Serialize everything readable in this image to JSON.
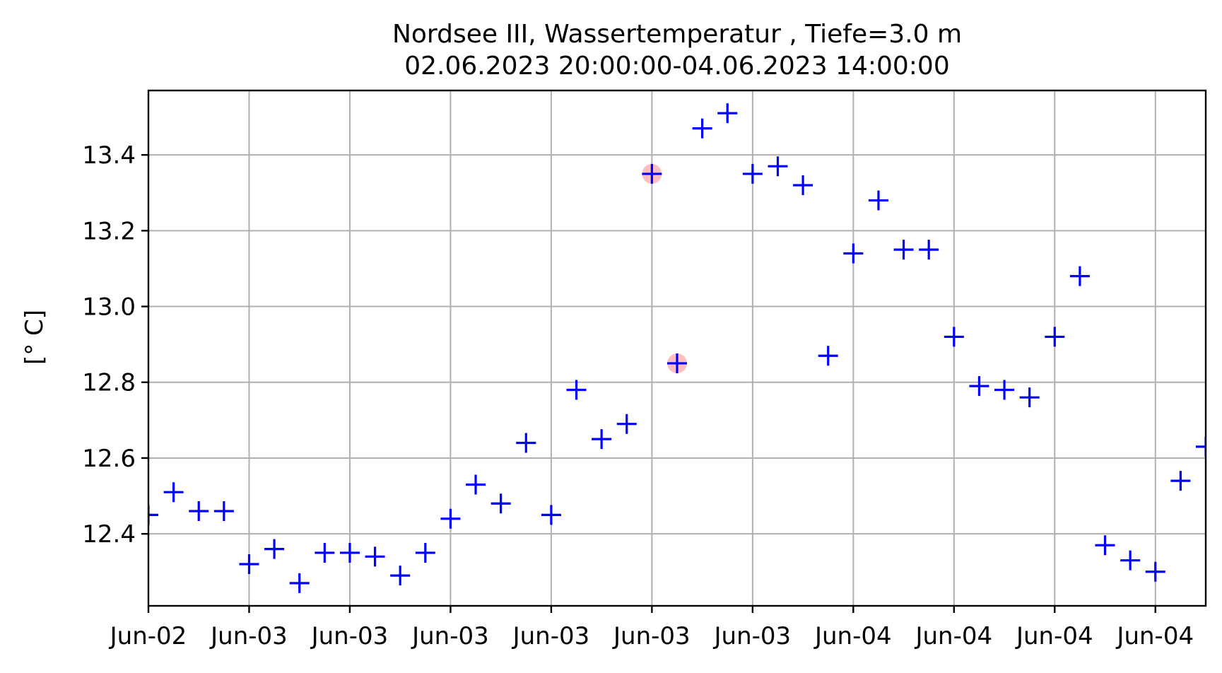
{
  "chart_data": {
    "type": "scatter",
    "title": "Nordsee III, Wassertemperatur , Tiefe=3.0 m",
    "subtitle": "02.06.2023 20:00:00-04.06.2023 14:00:00",
    "xlabel": "",
    "ylabel": "[° C]",
    "xlim": [
      "2023-06-02T20:00:00",
      "2023-06-04T14:00:00"
    ],
    "ylim": [
      12.21,
      13.57
    ],
    "grid": true,
    "x_tick_labels": [
      "Jun-02",
      "Jun-03",
      "Jun-03",
      "Jun-03",
      "Jun-03",
      "Jun-03",
      "Jun-03",
      "Jun-04",
      "Jun-04",
      "Jun-04",
      "Jun-04"
    ],
    "x_tick_values": [
      "2023-06-02T20:00:00",
      "2023-06-03T00:00:00",
      "2023-06-03T04:00:00",
      "2023-06-03T08:00:00",
      "2023-06-03T12:00:00",
      "2023-06-03T16:00:00",
      "2023-06-03T20:00:00",
      "2023-06-04T00:00:00",
      "2023-06-04T04:00:00",
      "2023-06-04T08:00:00",
      "2023-06-04T12:00:00"
    ],
    "y_ticks": [
      12.4,
      12.6,
      12.8,
      13.0,
      13.2,
      13.4
    ],
    "y_tick_labels": [
      "12.4",
      "12.6",
      "12.8",
      "13.0",
      "13.2",
      "13.4"
    ],
    "marker_color": "#0000ff",
    "highlight_color": "#ffaaaa",
    "series": [
      {
        "marker": "plus",
        "points": [
          {
            "x": "2023-06-02T20:00:00",
            "y": 12.45
          },
          {
            "x": "2023-06-02T21:00:00",
            "y": 12.51
          },
          {
            "x": "2023-06-02T22:00:00",
            "y": 12.46
          },
          {
            "x": "2023-06-02T23:00:00",
            "y": 12.46
          },
          {
            "x": "2023-06-03T00:00:00",
            "y": 12.32
          },
          {
            "x": "2023-06-03T01:00:00",
            "y": 12.36
          },
          {
            "x": "2023-06-03T02:00:00",
            "y": 12.27
          },
          {
            "x": "2023-06-03T03:00:00",
            "y": 12.35
          },
          {
            "x": "2023-06-03T04:00:00",
            "y": 12.35
          },
          {
            "x": "2023-06-03T05:00:00",
            "y": 12.34
          },
          {
            "x": "2023-06-03T06:00:00",
            "y": 12.29
          },
          {
            "x": "2023-06-03T07:00:00",
            "y": 12.35
          },
          {
            "x": "2023-06-03T08:00:00",
            "y": 12.44
          },
          {
            "x": "2023-06-03T09:00:00",
            "y": 12.53
          },
          {
            "x": "2023-06-03T10:00:00",
            "y": 12.48
          },
          {
            "x": "2023-06-03T11:00:00",
            "y": 12.64
          },
          {
            "x": "2023-06-03T12:00:00",
            "y": 12.45
          },
          {
            "x": "2023-06-03T13:00:00",
            "y": 12.78
          },
          {
            "x": "2023-06-03T14:00:00",
            "y": 12.65
          },
          {
            "x": "2023-06-03T15:00:00",
            "y": 12.69
          },
          {
            "x": "2023-06-03T16:00:00",
            "y": 13.35,
            "highlight": true
          },
          {
            "x": "2023-06-03T17:00:00",
            "y": 12.85,
            "highlight": true
          },
          {
            "x": "2023-06-03T18:00:00",
            "y": 13.47
          },
          {
            "x": "2023-06-03T19:00:00",
            "y": 13.51
          },
          {
            "x": "2023-06-03T20:00:00",
            "y": 13.35
          },
          {
            "x": "2023-06-03T21:00:00",
            "y": 13.37
          },
          {
            "x": "2023-06-03T22:00:00",
            "y": 13.32
          },
          {
            "x": "2023-06-03T23:00:00",
            "y": 12.87
          },
          {
            "x": "2023-06-04T00:00:00",
            "y": 13.14
          },
          {
            "x": "2023-06-04T01:00:00",
            "y": 13.28
          },
          {
            "x": "2023-06-04T02:00:00",
            "y": 13.15
          },
          {
            "x": "2023-06-04T03:00:00",
            "y": 13.15
          },
          {
            "x": "2023-06-04T04:00:00",
            "y": 12.92
          },
          {
            "x": "2023-06-04T05:00:00",
            "y": 12.79
          },
          {
            "x": "2023-06-04T06:00:00",
            "y": 12.78
          },
          {
            "x": "2023-06-04T07:00:00",
            "y": 12.76
          },
          {
            "x": "2023-06-04T08:00:00",
            "y": 12.92
          },
          {
            "x": "2023-06-04T09:00:00",
            "y": 13.08
          },
          {
            "x": "2023-06-04T10:00:00",
            "y": 12.37
          },
          {
            "x": "2023-06-04T11:00:00",
            "y": 12.33
          },
          {
            "x": "2023-06-04T12:00:00",
            "y": 12.3
          },
          {
            "x": "2023-06-04T13:00:00",
            "y": 12.54
          },
          {
            "x": "2023-06-04T14:00:00",
            "y": 12.63
          }
        ]
      }
    ]
  }
}
